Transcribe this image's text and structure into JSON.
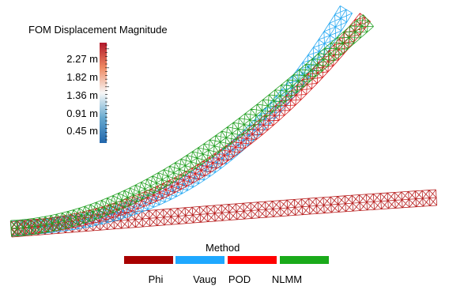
{
  "colorbar": {
    "title": "FOM Displacement Magnitude",
    "labels": [
      "2.27  m",
      "1.82  m",
      "1.36  m",
      "0.91  m",
      "0.45  m"
    ],
    "colormap": [
      "#b2182b",
      "#ef8a62",
      "#f7f7f7",
      "#67a9cf",
      "#2166ac"
    ]
  },
  "legend": {
    "title": "Method",
    "items": [
      {
        "label": "Phi",
        "color": "#a80000"
      },
      {
        "label": "Vaug",
        "color": "#1ea8ff"
      },
      {
        "label": "POD",
        "color": "#ff0000"
      },
      {
        "label": "NLMM",
        "color": "#1aaa1a"
      }
    ]
  },
  "beams": [
    {
      "method": "Phi",
      "color": "#b81f1f",
      "icon": "straight-deformed-mesh"
    },
    {
      "method": "Vaug",
      "color": "#29a9f2",
      "icon": "curved-mesh"
    },
    {
      "method": "POD",
      "color": "#d42020",
      "icon": "curved-mesh"
    },
    {
      "method": "NLMM",
      "color": "#22a022",
      "icon": "curved-mesh"
    }
  ]
}
